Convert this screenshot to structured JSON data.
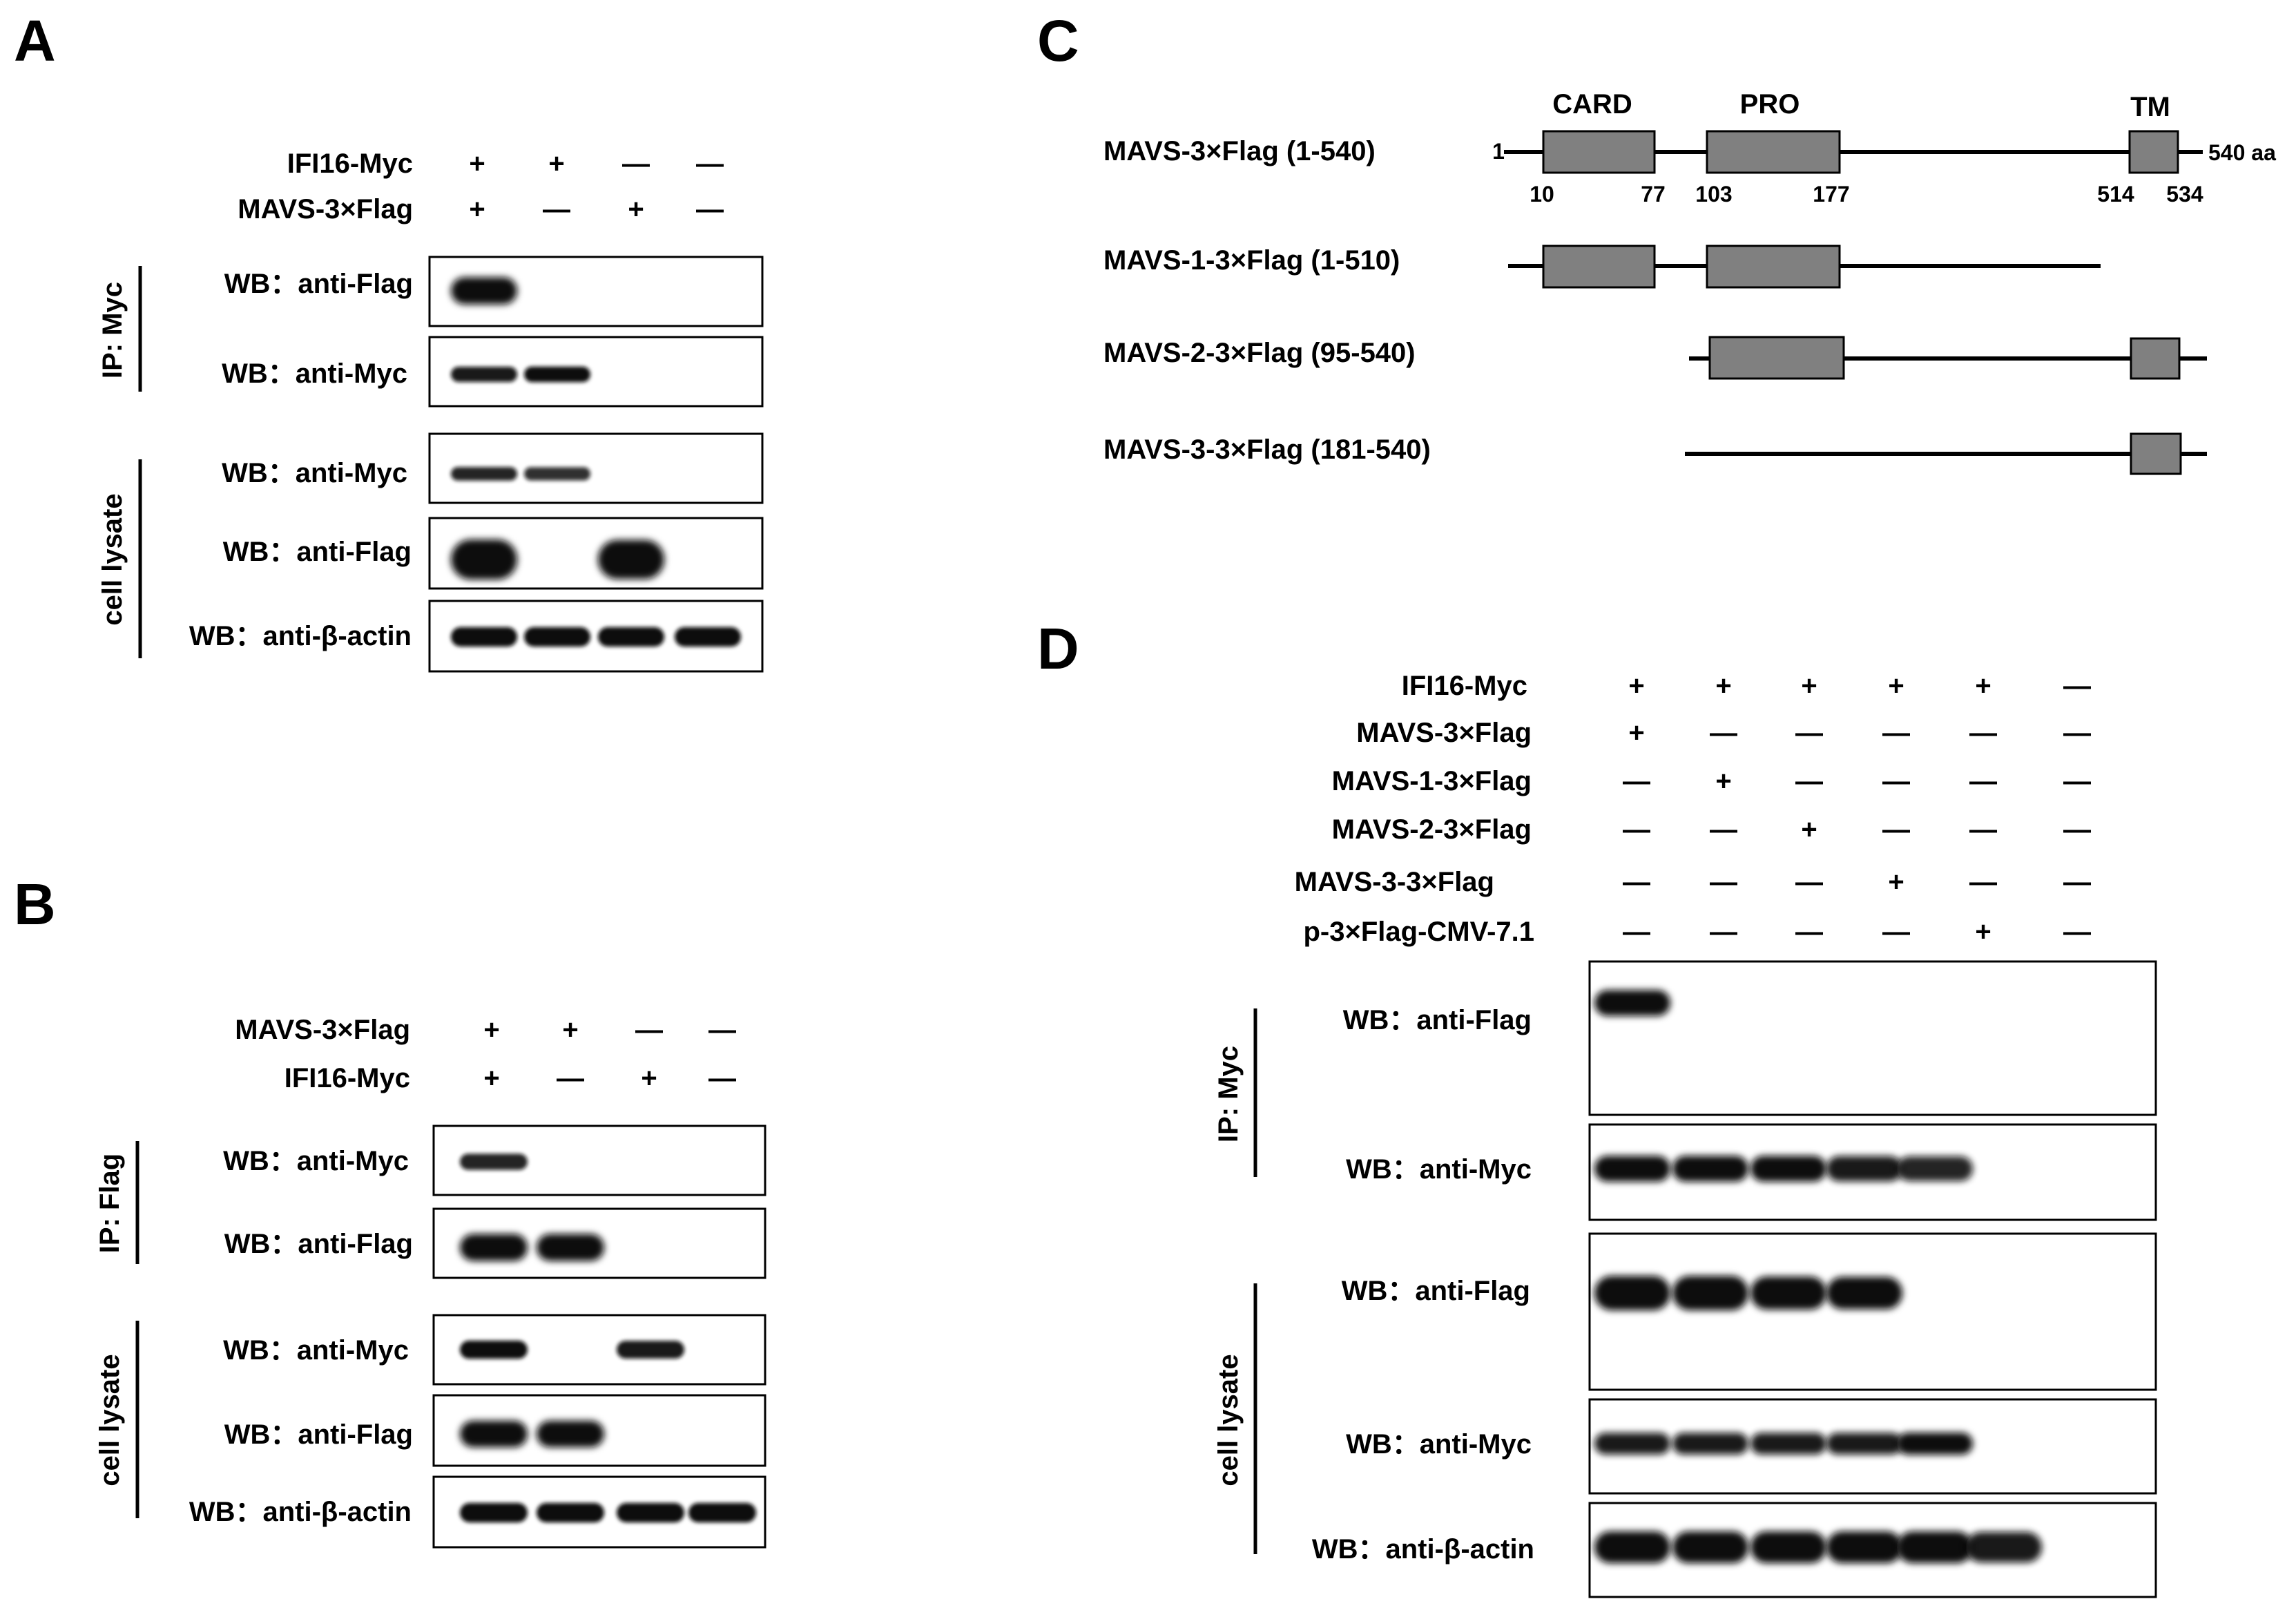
{
  "panels": {
    "A": {
      "letter": "A",
      "conditions": [
        {
          "label": "IFI16-Myc",
          "signs": [
            "+",
            "+",
            "—",
            "—"
          ]
        },
        {
          "label": "MAVS-3×Flag",
          "signs": [
            "+",
            "—",
            "+",
            "—"
          ]
        }
      ],
      "groups": [
        "IP: Myc",
        "cell lysate"
      ],
      "blots": [
        {
          "label": "WB：anti-Flag",
          "group": "IP: Myc",
          "bands": [
            0.95,
            0,
            0,
            0
          ]
        },
        {
          "label": "WB：anti-Myc",
          "group": "IP: Myc",
          "bands": [
            0.8,
            0.85,
            0,
            0
          ]
        },
        {
          "label": "WB：anti-Myc",
          "group": "cell lysate",
          "bands": [
            0.75,
            0.7,
            0,
            0
          ]
        },
        {
          "label": "WB：anti-Flag",
          "group": "cell lysate",
          "bands": [
            1.0,
            0,
            0.95,
            0
          ]
        },
        {
          "label": "WB：anti-β-actin",
          "group": "cell lysate",
          "bands": [
            0.85,
            0.85,
            0.85,
            0.85
          ]
        }
      ]
    },
    "B": {
      "letter": "B",
      "conditions": [
        {
          "label": "MAVS-3×Flag",
          "signs": [
            "+",
            "+",
            "—",
            "—"
          ]
        },
        {
          "label": "IFI16-Myc",
          "signs": [
            "+",
            "—",
            "+",
            "—"
          ]
        }
      ],
      "groups": [
        "IP: Flag",
        "cell lysate"
      ],
      "blots": [
        {
          "label": "WB：anti-Myc",
          "group": "IP: Flag",
          "bands": [
            0.75,
            0,
            0,
            0
          ]
        },
        {
          "label": "WB：anti-Flag",
          "group": "IP: Flag",
          "bands": [
            0.95,
            0.95,
            0,
            0
          ]
        },
        {
          "label": "WB：anti-Myc",
          "group": "cell lysate",
          "bands": [
            0.85,
            0,
            0.8,
            0
          ]
        },
        {
          "label": "WB：anti-Flag",
          "group": "cell lysate",
          "bands": [
            0.9,
            0.9,
            0,
            0
          ]
        },
        {
          "label": "WB：anti-β-actin",
          "group": "cell lysate",
          "bands": [
            0.85,
            0.85,
            0.85,
            0.85
          ]
        }
      ]
    },
    "C": {
      "letter": "C",
      "length_label": "540 aa",
      "start_label": "1",
      "domains": [
        {
          "name": "CARD",
          "start": 10,
          "end": 77
        },
        {
          "name": "PRO",
          "start": 103,
          "end": 177
        },
        {
          "name": "TM",
          "start": 514,
          "end": 534
        }
      ],
      "position_labels": [
        "10",
        "77",
        "103",
        "177",
        "514",
        "534"
      ],
      "constructs": [
        {
          "label": "MAVS-3×Flag (1-540)",
          "start": 1,
          "end": 540
        },
        {
          "label": "MAVS-1-3×Flag (1-510)",
          "start": 1,
          "end": 510
        },
        {
          "label": "MAVS-2-3×Flag (95-540)",
          "start": 95,
          "end": 540
        },
        {
          "label": "MAVS-3-3×Flag (181-540)",
          "start": 181,
          "end": 540
        }
      ]
    },
    "D": {
      "letter": "D",
      "conditions": [
        {
          "label": "IFI16-Myc",
          "signs": [
            "+",
            "+",
            "+",
            "+",
            "+",
            "—"
          ]
        },
        {
          "label": "MAVS-3×Flag",
          "signs": [
            "+",
            "—",
            "—",
            "—",
            "—",
            "—"
          ]
        },
        {
          "label": "MAVS-1-3×Flag",
          "signs": [
            "—",
            "+",
            "—",
            "—",
            "—",
            "—"
          ]
        },
        {
          "label": "MAVS-2-3×Flag",
          "signs": [
            "—",
            "—",
            "+",
            "—",
            "—",
            "—"
          ]
        },
        {
          "label": "MAVS-3-3×Flag",
          "signs": [
            "—",
            "—",
            "—",
            "+",
            "—",
            "—"
          ]
        },
        {
          "label": "p-3×Flag-CMV-7.1",
          "signs": [
            "—",
            "—",
            "—",
            "—",
            "+",
            "—"
          ]
        }
      ],
      "groups": [
        "IP: Myc",
        "cell lysate"
      ],
      "blots": [
        {
          "label": "WB：anti-Flag",
          "group": "IP: Myc",
          "bands": [
            0.85,
            0,
            0,
            0,
            0,
            0
          ]
        },
        {
          "label": "WB：anti-Myc",
          "group": "IP: Myc",
          "bands": [
            0.85,
            0.85,
            0.85,
            0.8,
            0.75,
            0
          ]
        },
        {
          "label": "WB：anti-Flag",
          "group": "cell lysate",
          "bands": [
            1.0,
            1.0,
            0.9,
            0.85,
            0,
            0
          ]
        },
        {
          "label": "WB：anti-Myc",
          "group": "cell lysate",
          "bands": [
            0.8,
            0.8,
            0.8,
            0.8,
            0.85,
            0
          ]
        },
        {
          "label": "WB：anti-β-actin",
          "group": "cell lysate",
          "bands": [
            0.9,
            0.9,
            0.9,
            0.9,
            0.9,
            0.8
          ]
        }
      ]
    }
  }
}
